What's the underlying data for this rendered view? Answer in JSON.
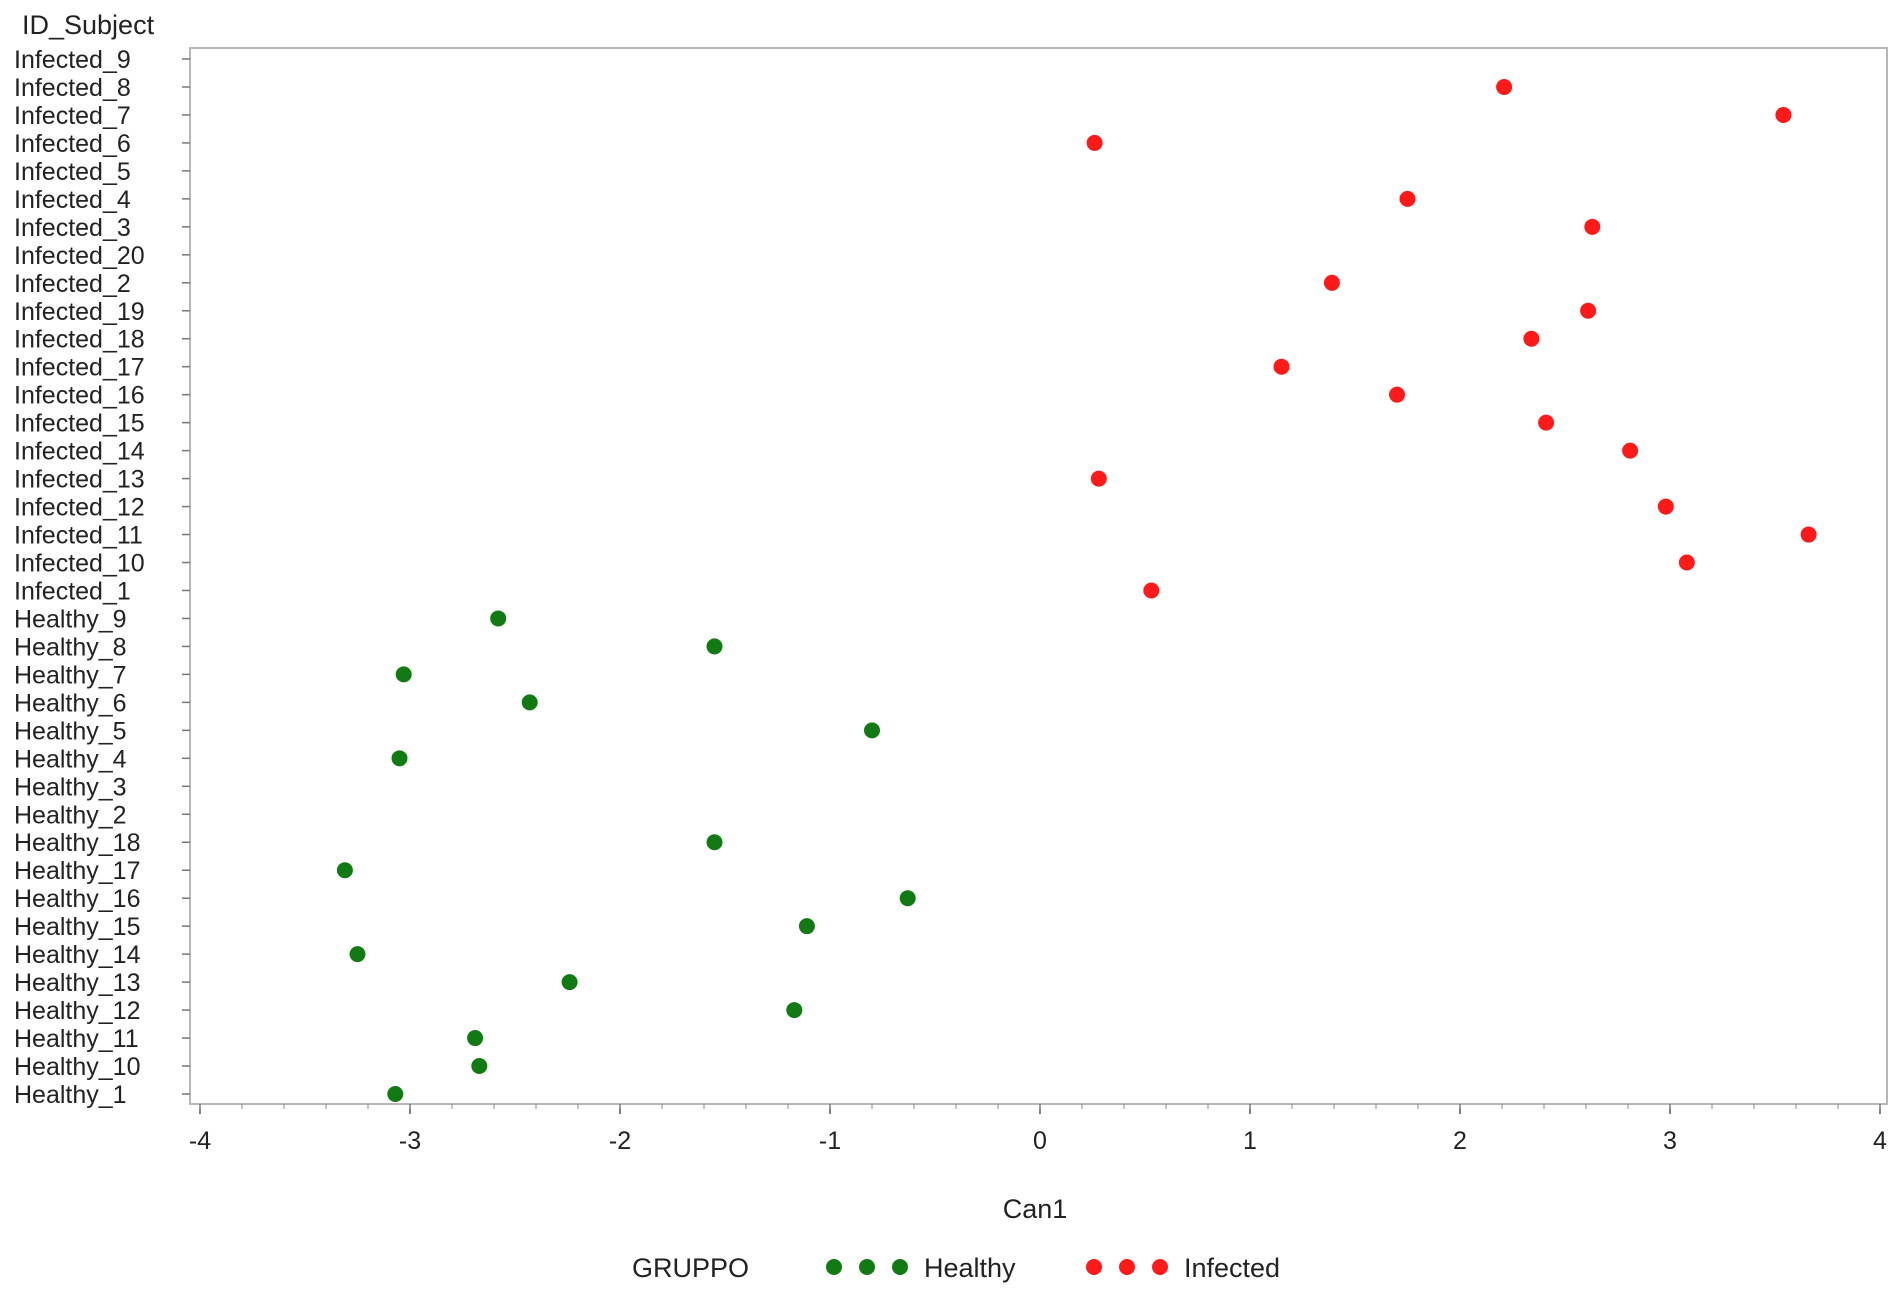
{
  "chart_data": {
    "type": "scatter",
    "title": "",
    "xlabel": "Can1",
    "ylabel": "ID_Subject",
    "xlim": [
      -4,
      4
    ],
    "xticks": [
      -4,
      -3,
      -2,
      -1,
      0,
      1,
      2,
      3,
      4
    ],
    "categories": [
      "Infected_9",
      "Infected_8",
      "Infected_7",
      "Infected_6",
      "Infected_5",
      "Infected_4",
      "Infected_3",
      "Infected_20",
      "Infected_2",
      "Infected_19",
      "Infected_18",
      "Infected_17",
      "Infected_16",
      "Infected_15",
      "Infected_14",
      "Infected_13",
      "Infected_12",
      "Infected_11",
      "Infected_10",
      "Infected_1",
      "Healthy_9",
      "Healthy_8",
      "Healthy_7",
      "Healthy_6",
      "Healthy_5",
      "Healthy_4",
      "Healthy_3",
      "Healthy_2",
      "Healthy_18",
      "Healthy_17",
      "Healthy_16",
      "Healthy_15",
      "Healthy_14",
      "Healthy_13",
      "Healthy_12",
      "Healthy_11",
      "Healthy_10",
      "Healthy_1"
    ],
    "grid": false,
    "legend": {
      "title": "GRUPPO",
      "placement": "bottom"
    },
    "series": [
      {
        "name": "Healthy",
        "color": "#127a12",
        "points": [
          {
            "label": "Healthy_9",
            "x": -2.58
          },
          {
            "label": "Healthy_8",
            "x": -1.55
          },
          {
            "label": "Healthy_7",
            "x": -3.03
          },
          {
            "label": "Healthy_6",
            "x": -2.43
          },
          {
            "label": "Healthy_5",
            "x": -0.8
          },
          {
            "label": "Healthy_4",
            "x": -3.05
          },
          {
            "label": "Healthy_18",
            "x": -1.55
          },
          {
            "label": "Healthy_17",
            "x": -3.31
          },
          {
            "label": "Healthy_16",
            "x": -0.63
          },
          {
            "label": "Healthy_15",
            "x": -1.11
          },
          {
            "label": "Healthy_14",
            "x": -3.25
          },
          {
            "label": "Healthy_13",
            "x": -2.24
          },
          {
            "label": "Healthy_12",
            "x": -1.17
          },
          {
            "label": "Healthy_11",
            "x": -2.69
          },
          {
            "label": "Healthy_10",
            "x": -2.67
          },
          {
            "label": "Healthy_1",
            "x": -3.07
          }
        ]
      },
      {
        "name": "Infected",
        "color": "#ff1a1a",
        "points": [
          {
            "label": "Infected_8",
            "x": 2.21
          },
          {
            "label": "Infected_7",
            "x": 3.54
          },
          {
            "label": "Infected_6",
            "x": 0.26
          },
          {
            "label": "Infected_4",
            "x": 1.75
          },
          {
            "label": "Infected_3",
            "x": 2.63
          },
          {
            "label": "Infected_2",
            "x": 1.39
          },
          {
            "label": "Infected_19",
            "x": 2.61
          },
          {
            "label": "Infected_18",
            "x": 2.34
          },
          {
            "label": "Infected_17",
            "x": 1.15
          },
          {
            "label": "Infected_16",
            "x": 1.7
          },
          {
            "label": "Infected_15",
            "x": 2.41
          },
          {
            "label": "Infected_14",
            "x": 2.81
          },
          {
            "label": "Infected_13",
            "x": 0.28
          },
          {
            "label": "Infected_12",
            "x": 2.98
          },
          {
            "label": "Infected_11",
            "x": 3.66
          },
          {
            "label": "Infected_10",
            "x": 3.08
          },
          {
            "label": "Infected_1",
            "x": 0.53
          }
        ]
      }
    ]
  }
}
